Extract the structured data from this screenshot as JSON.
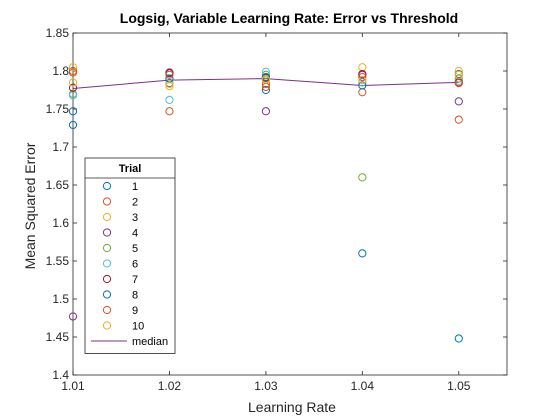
{
  "chart_data": {
    "type": "scatter",
    "title": "Logsig, Variable Learning Rate: Error vs Threshold",
    "xlabel": "Learning Rate",
    "ylabel": "Mean Squared Error",
    "xlim": [
      1.01,
      1.055
    ],
    "ylim": [
      1.4,
      1.85
    ],
    "x_ticks": [
      "1.01",
      "1.02",
      "1.03",
      "1.04",
      "1.05"
    ],
    "y_ticks": [
      "1.4",
      "1.45",
      "1.5",
      "1.55",
      "1.6",
      "1.65",
      "1.7",
      "1.75",
      "1.8",
      "1.85"
    ],
    "grid": false,
    "legend_title": "Trial",
    "legend_position": "bottom-left",
    "x": [
      1.01,
      1.02,
      1.03,
      1.04,
      1.05
    ],
    "series": [
      {
        "name": "1",
        "color": "#0072BD",
        "values": [
          1.747,
          1.784,
          1.775,
          1.56,
          1.448
        ]
      },
      {
        "name": "2",
        "color": "#D95319",
        "values": [
          1.798,
          1.747,
          1.783,
          1.772,
          1.736
        ]
      },
      {
        "name": "3",
        "color": "#EDB120",
        "values": [
          1.805,
          1.783,
          1.788,
          1.805,
          1.8
        ]
      },
      {
        "name": "4",
        "color": "#7E2F8E",
        "values": [
          1.477,
          1.797,
          1.747,
          1.795,
          1.76
        ]
      },
      {
        "name": "5",
        "color": "#77AC30",
        "values": [
          1.77,
          1.79,
          1.795,
          1.66,
          1.79
        ]
      },
      {
        "name": "6",
        "color": "#4DBEEE",
        "values": [
          1.768,
          1.762,
          1.799,
          1.785,
          1.787
        ]
      },
      {
        "name": "7",
        "color": "#A2142F",
        "values": [
          1.778,
          1.798,
          1.791,
          1.796,
          1.785
        ]
      },
      {
        "name": "8",
        "color": "#0072BD",
        "values": [
          1.729,
          1.79,
          1.792,
          1.781,
          1.796
        ]
      },
      {
        "name": "9",
        "color": "#D95319",
        "values": [
          1.8,
          1.795,
          1.779,
          1.792,
          1.784
        ]
      },
      {
        "name": "10",
        "color": "#EDB120",
        "values": [
          1.785,
          1.78,
          1.789,
          1.788,
          1.795
        ]
      }
    ],
    "median": {
      "name": "median",
      "color": "#7E2F8E",
      "values": [
        1.777,
        1.788,
        1.79,
        1.781,
        1.785
      ]
    }
  }
}
